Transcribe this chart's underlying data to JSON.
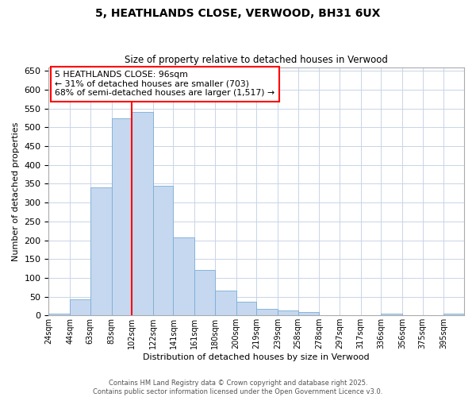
{
  "title": "5, HEATHLANDS CLOSE, VERWOOD, BH31 6UX",
  "subtitle": "Size of property relative to detached houses in Verwood",
  "xlabel": "Distribution of detached houses by size in Verwood",
  "ylabel": "Number of detached properties",
  "annotation_line1": "5 HEATHLANDS CLOSE: 96sqm",
  "annotation_line2": "← 31% of detached houses are smaller (703)",
  "annotation_line3": "68% of semi-detached houses are larger (1,517) →",
  "bar_edges": [
    24,
    44,
    63,
    83,
    102,
    122,
    141,
    161,
    180,
    200,
    219,
    239,
    258,
    278,
    297,
    317,
    336,
    356,
    375,
    395,
    414
  ],
  "bar_heights": [
    5,
    42,
    340,
    525,
    540,
    345,
    208,
    120,
    67,
    37,
    18,
    13,
    10,
    0,
    0,
    0,
    5,
    0,
    0,
    5
  ],
  "bar_color": "#c5d8f0",
  "bar_edgecolor": "#7aadd4",
  "red_line_x": 102,
  "ylim": [
    0,
    660
  ],
  "yticks": [
    0,
    50,
    100,
    150,
    200,
    250,
    300,
    350,
    400,
    450,
    500,
    550,
    600,
    650
  ],
  "background_color": "#ffffff",
  "grid_color": "#c8d4e8",
  "footer_line1": "Contains HM Land Registry data © Crown copyright and database right 2025.",
  "footer_line2": "Contains public sector information licensed under the Open Government Licence v3.0."
}
